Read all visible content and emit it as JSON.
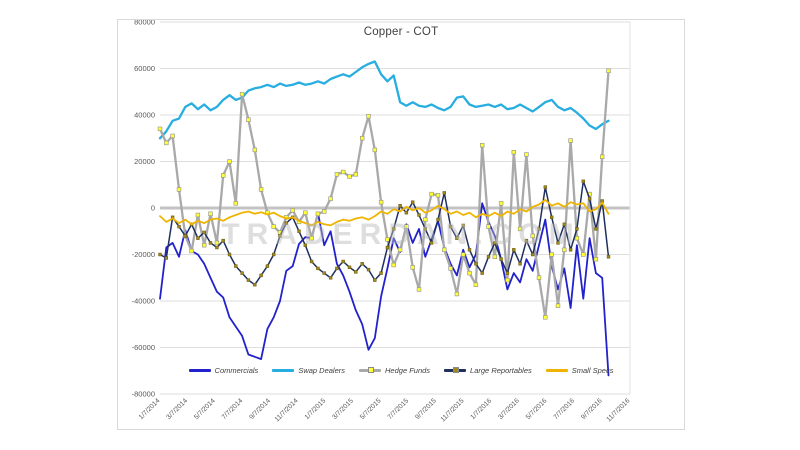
{
  "watermark": {
    "text": "TRADERDAN.COM"
  },
  "chart_data": {
    "type": "line",
    "title": "Copper - COT",
    "xlabel": "",
    "ylabel": "",
    "grid": "horizontal",
    "legend_position": "bottom-inside",
    "y_axis": {
      "min": -80000,
      "max": 80000,
      "step": 20000,
      "ticks": [
        80000,
        60000,
        40000,
        20000,
        0,
        -20000,
        -40000,
        -60000,
        -80000
      ]
    },
    "x_axis": {
      "labels": [
        "1/7/2014",
        "3/7/2014",
        "5/7/2014",
        "7/7/2014",
        "9/7/2014",
        "11/7/2014",
        "1/7/2015",
        "3/7/2015",
        "5/7/2015",
        "7/7/2015",
        "9/7/2015",
        "11/7/2015",
        "1/7/2016",
        "3/7/2016",
        "5/7/2016",
        "7/7/2016",
        "9/7/2016",
        "11/7/2016"
      ]
    },
    "sampling_note": "values estimated from chart at ~biweekly resolution, Jan 2014 - Nov 2016",
    "series": [
      {
        "name": "Commercials",
        "color": "#2222cc",
        "marker": null,
        "values": [
          -39000,
          -17000,
          -15000,
          -21000,
          -9500,
          -18500,
          -20000,
          -24000,
          -30000,
          -36000,
          -38500,
          -47000,
          -51000,
          -55000,
          -63000,
          -64000,
          -65000,
          -52000,
          -47000,
          -40000,
          -27000,
          -25000,
          -15500,
          -12500,
          -13000,
          -2000,
          -16000,
          -10000,
          -24000,
          -29000,
          -36000,
          -44000,
          -50000,
          -61000,
          -56000,
          -38000,
          -26000,
          -13000,
          -19000,
          -7000,
          -15000,
          -9000,
          -21000,
          -13500,
          -5500,
          -17000,
          -24000,
          -29000,
          -18000,
          -25500,
          -20000,
          2000,
          -6000,
          -12000,
          -22000,
          -35000,
          -28000,
          -32000,
          -22000,
          -27000,
          -16000,
          -5000,
          -25000,
          -35000,
          -26000,
          -43000,
          -16000,
          -39000,
          -13000,
          -28000,
          -30000,
          -72000
        ]
      },
      {
        "name": "Swap Dealers",
        "color": "#27ade0",
        "marker": null,
        "values": [
          30000,
          33000,
          37500,
          38500,
          43500,
          45000,
          42500,
          44500,
          42000,
          43500,
          46500,
          48500,
          46500,
          47500,
          50500,
          51500,
          52000,
          53000,
          52000,
          53500,
          52500,
          53000,
          54000,
          53000,
          53500,
          54500,
          53500,
          55500,
          56500,
          57500,
          56500,
          58500,
          60500,
          62000,
          63000,
          57500,
          54500,
          57000,
          45500,
          44000,
          45500,
          44000,
          43500,
          44500,
          43000,
          42000,
          43500,
          47500,
          48000,
          44500,
          43500,
          44000,
          44500,
          43500,
          44500,
          42500,
          43000,
          44500,
          43000,
          41500,
          43500,
          45500,
          46500,
          43500,
          42000,
          43000,
          41000,
          38500,
          35500,
          34000,
          36000,
          37500
        ]
      },
      {
        "name": "Hedge Funds",
        "color": "#a9a9a9",
        "marker": "#ffff33",
        "values": [
          34000,
          28000,
          31000,
          8000,
          -12000,
          -18500,
          -3000,
          -16000,
          -2500,
          -15000,
          14000,
          20000,
          2000,
          49000,
          38000,
          25000,
          8000,
          -2000,
          -8000,
          -10500,
          -4000,
          -1000,
          -6000,
          -2000,
          -13000,
          -2500,
          -1500,
          4000,
          14500,
          15500,
          13500,
          14500,
          30000,
          39500,
          25000,
          2500,
          -13500,
          -24500,
          -18000,
          -8000,
          -25500,
          -35000,
          -5000,
          6000,
          5500,
          -18000,
          -26000,
          -37000,
          -20000,
          -28000,
          -33000,
          27000,
          -8000,
          -21000,
          2000,
          -31000,
          24000,
          -9000,
          23000,
          -12000,
          -30000,
          -47000,
          -20000,
          -42000,
          -18000,
          29000,
          -13000,
          -20000,
          6000,
          -22000,
          22000,
          59000
        ]
      },
      {
        "name": "Large Reportables",
        "color": "#1f3060",
        "marker": "#a08a1e",
        "values": [
          -20000,
          -21500,
          -4000,
          -8000,
          -12000,
          -7000,
          -13000,
          -10500,
          -15000,
          -17000,
          -14000,
          -20000,
          -25000,
          -28000,
          -31000,
          -33000,
          -29000,
          -25000,
          -20000,
          -12000,
          -6500,
          -4000,
          -10000,
          -16000,
          -23000,
          -26000,
          -28000,
          -30000,
          -26000,
          -23000,
          -25500,
          -27500,
          -24000,
          -26500,
          -31000,
          -28000,
          -17000,
          -9000,
          1000,
          -2000,
          2500,
          -3000,
          -9000,
          -15000,
          -5000,
          6500,
          -8000,
          -13000,
          -7500,
          -18000,
          -24000,
          -28000,
          -21000,
          -15000,
          -22000,
          -28000,
          -18000,
          -24000,
          -14000,
          -20000,
          -9000,
          9000,
          -4000,
          -15000,
          -7000,
          -18000,
          -9000,
          11500,
          4000,
          -9000,
          3000,
          -21000
        ]
      },
      {
        "name": "Small Specs",
        "color": "#f0b400",
        "marker": null,
        "values": [
          -3500,
          -6000,
          -4500,
          -6500,
          -5000,
          -7000,
          -5500,
          -6500,
          -5000,
          -4500,
          -5500,
          -4000,
          -3000,
          -2000,
          -1500,
          -2500,
          -1800,
          -2800,
          -2000,
          -3500,
          -4500,
          -4000,
          -5500,
          -6500,
          -7500,
          -6000,
          -7000,
          -7500,
          -6000,
          -5000,
          -5500,
          -4500,
          -4000,
          -5000,
          -3500,
          -1500,
          -2500,
          -500,
          -1500,
          500,
          -1000,
          0,
          -2000,
          -1000,
          1000,
          -500,
          -2500,
          -1500,
          -3000,
          -2000,
          -4000,
          -2500,
          -3500,
          -2000,
          -3500,
          -1500,
          -2500,
          -500,
          -1500,
          500,
          1500,
          3500,
          1000,
          2000,
          500,
          2500,
          1500,
          2000,
          -1500,
          -500,
          2300,
          -2500
        ]
      }
    ]
  }
}
